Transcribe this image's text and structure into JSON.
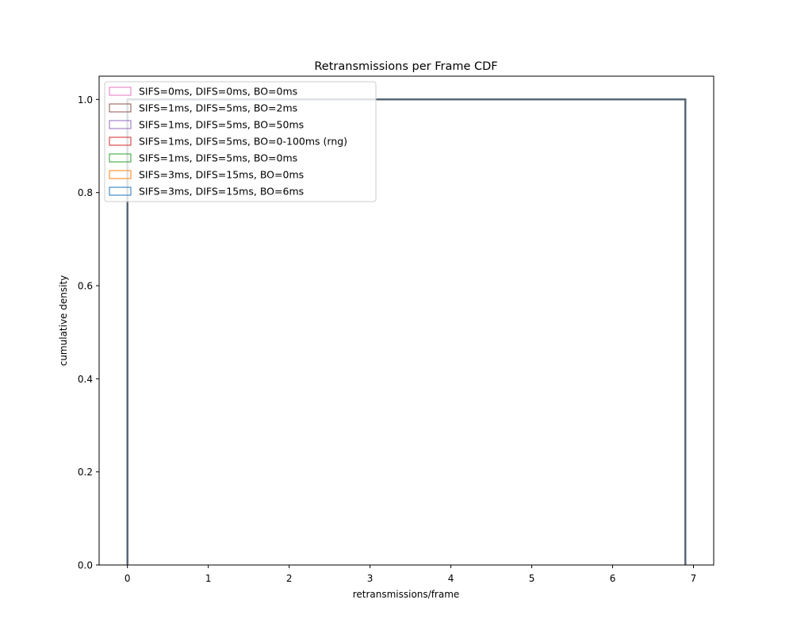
{
  "chart_data": {
    "type": "line",
    "title": "Retransmissions per Frame CDF",
    "xlabel": "retransmissions/frame",
    "ylabel": "cumulative density",
    "xlim": [
      -0.35,
      7.25
    ],
    "ylim": [
      0.0,
      1.05
    ],
    "x_ticks": [
      0,
      1,
      2,
      3,
      4,
      5,
      6,
      7
    ],
    "x_tick_labels": [
      "0",
      "1",
      "2",
      "3",
      "4",
      "5",
      "6",
      "7"
    ],
    "y_ticks": [
      0.0,
      0.2,
      0.4,
      0.6,
      0.8,
      1.0
    ],
    "y_tick_labels": [
      "0.0",
      "0.2",
      "0.4",
      "0.6",
      "0.8",
      "1.0"
    ],
    "grid": false,
    "legend_position": "upper-left",
    "series": [
      {
        "name": "SIFS=0ms, DIFS=0ms, BO=0ms",
        "color": "#e377c2",
        "x": [
          0,
          0,
          6.9,
          6.9
        ],
        "y": [
          0,
          1,
          1,
          0
        ]
      },
      {
        "name": "SIFS=1ms, DIFS=5ms, BO=2ms",
        "color": "#8c564b",
        "x": [
          0,
          0,
          6.9,
          6.9
        ],
        "y": [
          0,
          1,
          1,
          0
        ]
      },
      {
        "name": "SIFS=1ms, DIFS=5ms, BO=50ms",
        "color": "#9467bd",
        "x": [
          0,
          0,
          6.9,
          6.9
        ],
        "y": [
          0,
          1,
          1,
          0
        ]
      },
      {
        "name": "SIFS=1ms, DIFS=5ms, BO=0-100ms (rng)",
        "color": "#d62728",
        "x": [
          0,
          0,
          6.9,
          6.9
        ],
        "y": [
          0,
          1,
          1,
          0
        ]
      },
      {
        "name": "SIFS=1ms, DIFS=5ms, BO=0ms",
        "color": "#2ca02c",
        "x": [
          0,
          0,
          6.9,
          6.9
        ],
        "y": [
          0,
          1,
          1,
          0
        ]
      },
      {
        "name": "SIFS=3ms, DIFS=15ms, BO=0ms",
        "color": "#ff7f0e",
        "x": [
          0,
          0,
          6.9,
          6.9
        ],
        "y": [
          0,
          1,
          1,
          0
        ]
      },
      {
        "name": "SIFS=3ms, DIFS=15ms, BO=6ms",
        "color": "#1f77b4",
        "x": [
          0,
          0,
          6.9,
          6.9
        ],
        "y": [
          0,
          1,
          1,
          0
        ]
      }
    ],
    "overlap_line_color": "#546577"
  }
}
